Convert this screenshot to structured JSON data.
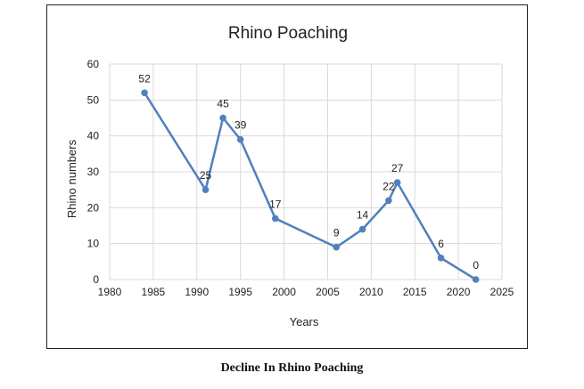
{
  "caption": "Decline In Rhino Poaching",
  "chart_data": {
    "type": "line",
    "title": "Rhino Poaching",
    "xlabel": "Years",
    "ylabel": "Rhino numbers",
    "xlim": [
      1980,
      2025
    ],
    "ylim": [
      0,
      60
    ],
    "x_ticks": [
      1980,
      1985,
      1990,
      1995,
      2000,
      2005,
      2010,
      2015,
      2020,
      2025
    ],
    "y_ticks": [
      0,
      10,
      20,
      30,
      40,
      50,
      60
    ],
    "grid": true,
    "legend": "none",
    "series": [
      {
        "color": "#4f81bd",
        "x": [
          1984,
          1991,
          1993,
          1995,
          1999,
          2006,
          2009,
          2012,
          2013,
          2018,
          2022
        ],
        "y": [
          52,
          25,
          45,
          39,
          17,
          9,
          14,
          22,
          27,
          6,
          0
        ],
        "labels": [
          "52",
          "25",
          "45",
          "39",
          "17",
          "9",
          "14",
          "22",
          "27",
          "6",
          "0"
        ]
      }
    ]
  }
}
